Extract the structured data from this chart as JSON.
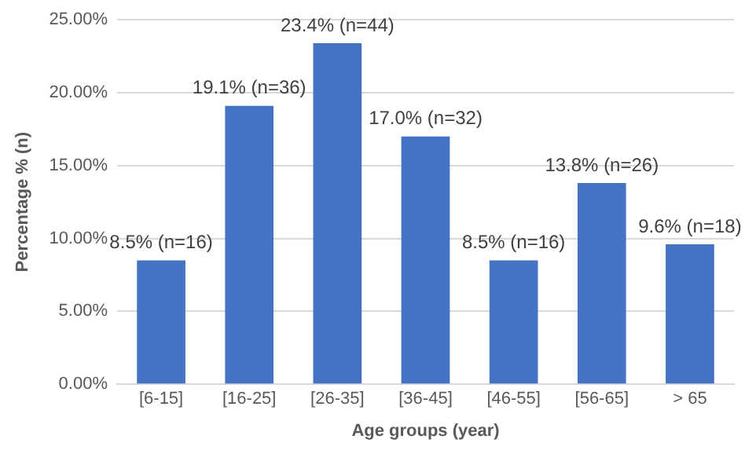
{
  "chart_data": {
    "type": "bar",
    "xlabel": "Age groups (year)",
    "ylabel": "Percentage % (n)",
    "categories": [
      "[6-15]",
      "[16-25]",
      "[26-35]",
      "[36-45]",
      "[46-55]",
      "[56-65]",
      "> 65"
    ],
    "values": [
      8.5,
      19.1,
      23.4,
      17.0,
      8.5,
      13.8,
      9.6
    ],
    "value_labels": [
      "8.5% (n=16)",
      "19.1% (n=36)",
      "23.4% (n=44)",
      "17.0% (n=32)",
      "8.5% (n=16)",
      "13.8% (n=26)",
      "9.6% (n=18)"
    ],
    "color": "#4472c4",
    "ylim": [
      0,
      25
    ],
    "yticks": [
      {
        "value": 0,
        "label": "0.00%"
      },
      {
        "value": 5,
        "label": "5.00%"
      },
      {
        "value": 10,
        "label": "10.00%"
      },
      {
        "value": 15,
        "label": "15.00%"
      },
      {
        "value": 20,
        "label": "20.00%"
      },
      {
        "value": 25,
        "label": "25.00%"
      }
    ],
    "grid": "y"
  }
}
